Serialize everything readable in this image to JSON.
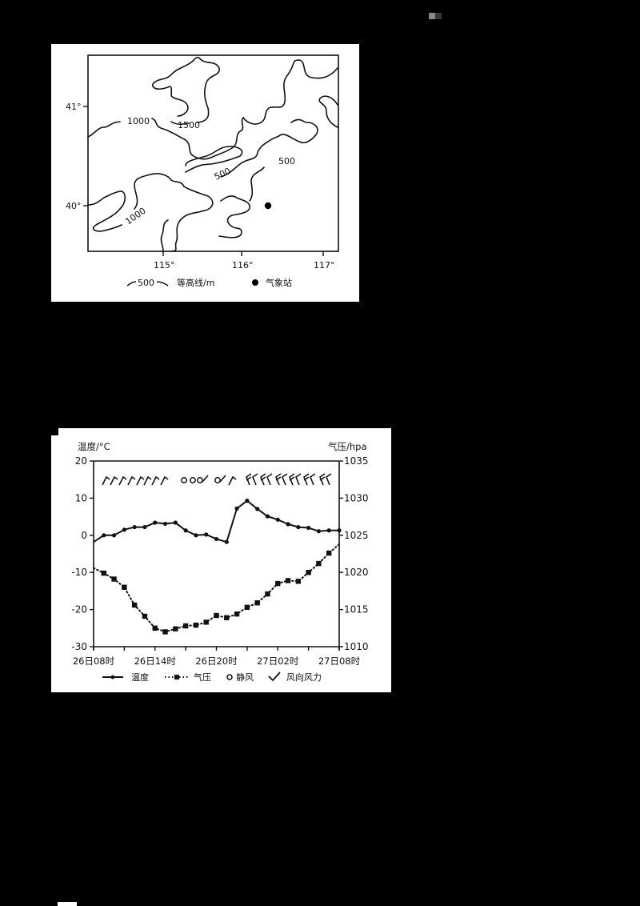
{
  "page": {
    "background": "#000000"
  },
  "map": {
    "type": "contour-map",
    "lat_labels": [
      "41°",
      "40°"
    ],
    "lon_labels": [
      "115°",
      "116°",
      "117°"
    ],
    "contour_labels": [
      "1000",
      "1500",
      "500",
      "500",
      "1000"
    ],
    "legend": {
      "contour_sample": "500",
      "contour_label": "等高线/m",
      "station_label": "气象站"
    },
    "station": {
      "lon": 116.3,
      "lat": 40.0
    }
  },
  "chart_data": {
    "type": "line",
    "title": "",
    "xlabel": "",
    "ylabel": "温度/°C",
    "ylabel_right": "气压/hpa",
    "ylim": [
      -30,
      20
    ],
    "ylim_right": [
      1010,
      1035
    ],
    "yticks": [
      "20",
      "10",
      "0",
      "-10",
      "-20",
      "-30"
    ],
    "yticks_right": [
      "1035",
      "1030",
      "1025",
      "1020",
      "1015",
      "1010"
    ],
    "x_tick_labels": [
      "26日08时",
      "26日14时",
      "26日20时",
      "27日02时",
      "27日08时"
    ],
    "x_hours": [
      0,
      1,
      2,
      3,
      4,
      5,
      6,
      7,
      8,
      9,
      10,
      11,
      12,
      13,
      14,
      15,
      16,
      17,
      18,
      19,
      20,
      21,
      22,
      23,
      24
    ],
    "grid": false,
    "legend_position": "bottom",
    "series": [
      {
        "name": "温度",
        "axis": "left",
        "style": "solid-circle",
        "values": [
          -1.8,
          0,
          0,
          1.5,
          2.2,
          2.2,
          3.4,
          3.1,
          3.4,
          1.3,
          0,
          0.2,
          -1.0,
          -1.8,
          7.2,
          9.3,
          7.1,
          5.1,
          4.2,
          3.0,
          2.2,
          2.0,
          1.1,
          1.3,
          1.3
        ]
      },
      {
        "name": "气压",
        "axis": "right",
        "style": "dotted-square",
        "values": [
          1020.6,
          1019.9,
          1019.1,
          1018.0,
          1015.6,
          1014.1,
          1012.5,
          1012.0,
          1012.4,
          1012.8,
          1012.9,
          1013.3,
          1014.2,
          1013.9,
          1014.4,
          1015.3,
          1015.9,
          1017.1,
          1018.5,
          1018.9,
          1018.8,
          1020.0,
          1021.2,
          1022.6,
          1023.8
        ]
      }
    ],
    "wind_symbols": [
      "barb",
      "barb",
      "barb",
      "barb",
      "barb",
      "barb",
      "barb",
      "barb",
      "calm",
      "calm",
      "calm-barb",
      "",
      "calm-barb",
      "barb",
      "",
      "barb-2",
      "barb-2",
      "barb-2",
      "barb-2",
      "barb-2",
      "",
      "barb-2"
    ],
    "legend": [
      {
        "label": "温度",
        "symbol": "solid-line-dot"
      },
      {
        "label": "气压",
        "symbol": "dotted-square"
      },
      {
        "label": "静风",
        "symbol": "circle"
      },
      {
        "label": "风向风力",
        "symbol": "check"
      }
    ]
  }
}
